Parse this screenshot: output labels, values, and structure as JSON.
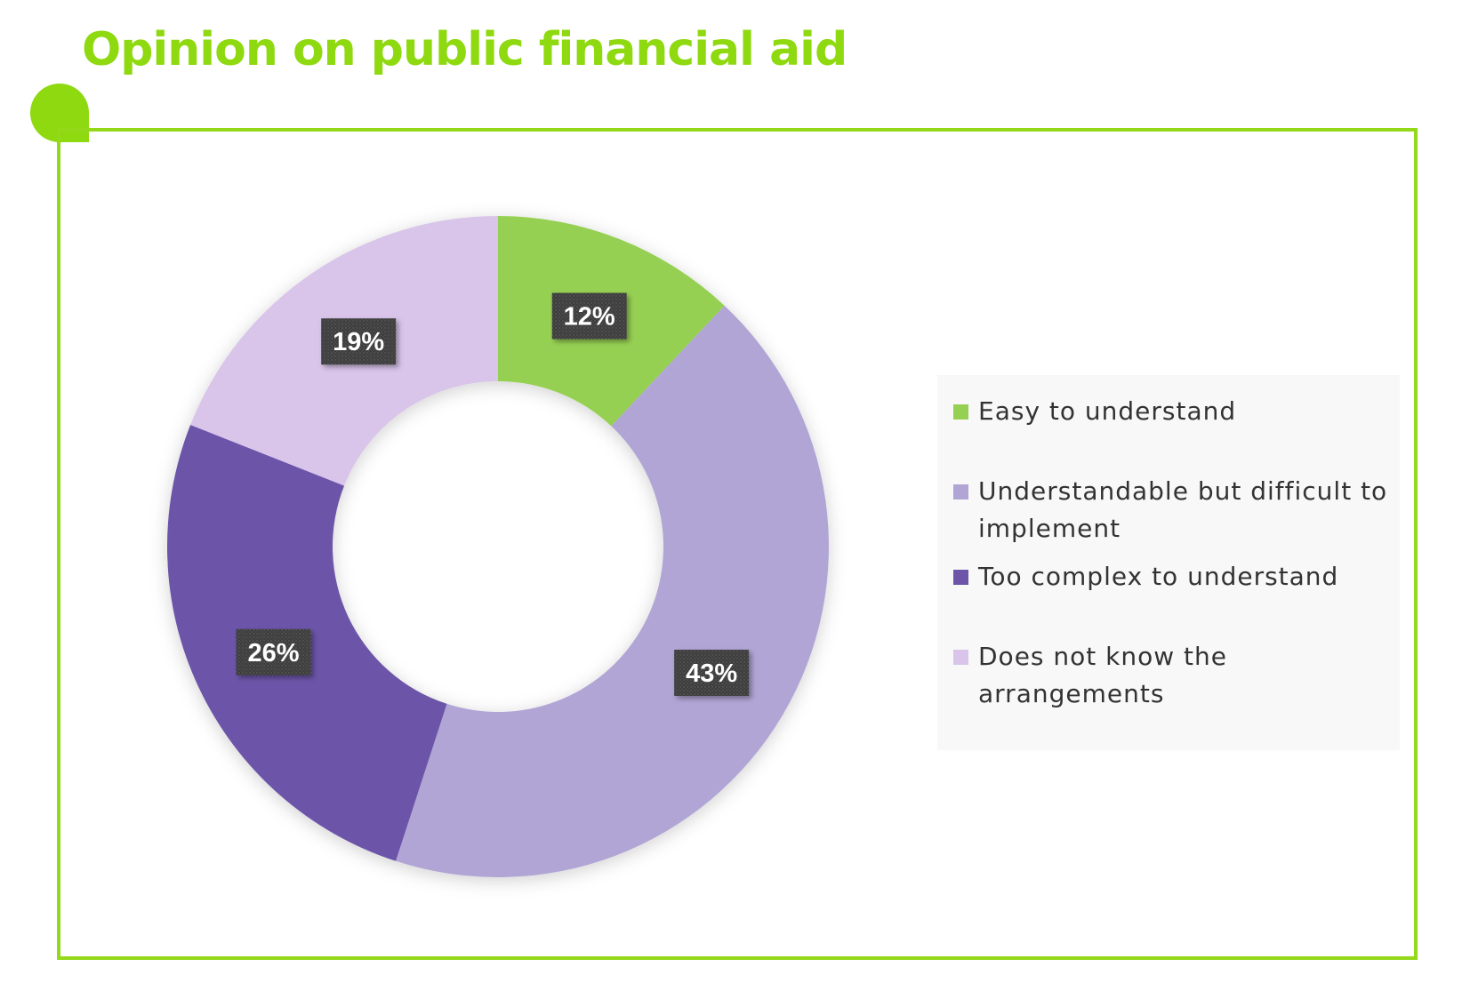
{
  "title": "Opinion on public financial aid",
  "colors": {
    "accent": "#8ed90f",
    "frame": "#94d81a"
  },
  "chart_data": {
    "type": "pie",
    "donut": true,
    "legend_position": "right",
    "categories": [
      "Easy to understand",
      "Understandable but difficult to implement",
      "Too complex to understand",
      "Does not know the arrangements"
    ],
    "values": [
      12,
      43,
      26,
      19
    ],
    "labels": [
      "12%",
      "43%",
      "26%",
      "19%"
    ],
    "colors": [
      "#96d053",
      "#b1a5d5",
      "#6c54a9",
      "#d9c4ea"
    ]
  }
}
